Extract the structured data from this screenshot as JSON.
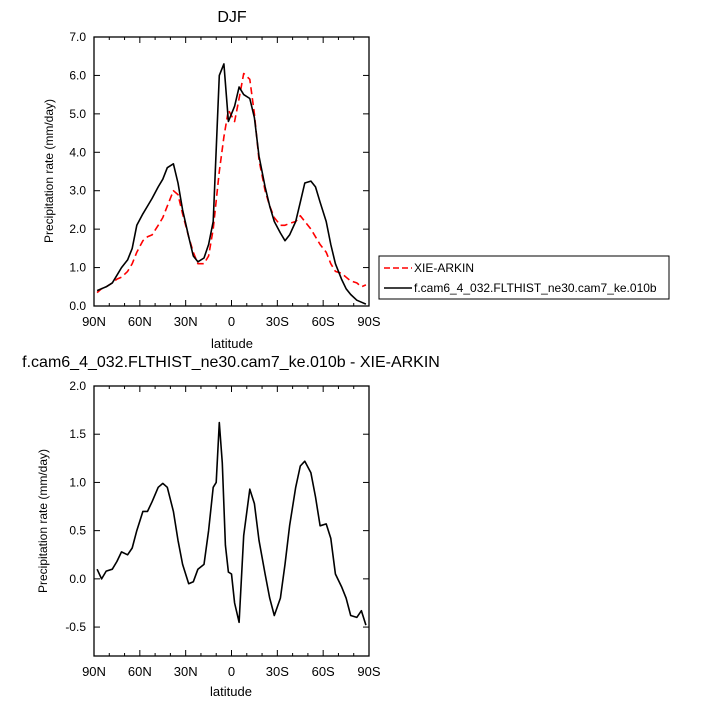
{
  "chart_data": [
    {
      "type": "line",
      "title": "DJF",
      "xlabel": "latitude",
      "ylabel": "Precipitation rate (mm/day)",
      "xlim": [
        90,
        -90
      ],
      "ylim": [
        0,
        7
      ],
      "x_ticks": [
        90,
        60,
        30,
        0,
        -30,
        -60,
        -90
      ],
      "x_tick_labels": [
        "90N",
        "60N",
        "30N",
        "0",
        "30S",
        "60S",
        "90S"
      ],
      "y_ticks": [
        0,
        1,
        2,
        3,
        4,
        5,
        6,
        7
      ],
      "y_tick_labels": [
        "0.0",
        "1.0",
        "2.0",
        "3.0",
        "4.0",
        "5.0",
        "6.0",
        "7.0"
      ],
      "legend_position": "outside-right",
      "series": [
        {
          "name": "XIE-ARKIN",
          "color": "#ff0000",
          "style": "dashed",
          "x": [
            88,
            85,
            82,
            78,
            75,
            72,
            68,
            65,
            62,
            58,
            55,
            52,
            48,
            45,
            42,
            38,
            35,
            32,
            28,
            25,
            22,
            18,
            15,
            12,
            8,
            5,
            2,
            -2,
            -5,
            -8,
            -12,
            -15,
            -18,
            -22,
            -25,
            -28,
            -32,
            -35,
            -38,
            -42,
            -45,
            -48,
            -52,
            -55,
            -58,
            -62,
            -65,
            -68,
            -72,
            -75,
            -78,
            -82,
            -85,
            -88
          ],
          "y": [
            0.35,
            0.45,
            0.5,
            0.6,
            0.7,
            0.75,
            0.9,
            1.1,
            1.4,
            1.7,
            1.8,
            1.85,
            2.1,
            2.3,
            2.6,
            3.0,
            2.9,
            2.4,
            1.8,
            1.4,
            1.1,
            1.1,
            1.3,
            2.0,
            3.5,
            4.4,
            5.1,
            4.8,
            5.4,
            6.05,
            5.9,
            5.0,
            3.8,
            3.0,
            2.6,
            2.3,
            2.1,
            2.1,
            2.15,
            2.2,
            2.35,
            2.2,
            2.0,
            1.8,
            1.6,
            1.4,
            1.1,
            0.9,
            0.85,
            0.75,
            0.65,
            0.6,
            0.5,
            0.55
          ]
        },
        {
          "name": "f.cam6_4_032.FLTHIST_ne30.cam7_ke.010b",
          "color": "#000000",
          "style": "solid",
          "x": [
            88,
            85,
            82,
            78,
            75,
            72,
            68,
            65,
            62,
            58,
            55,
            52,
            48,
            45,
            42,
            38,
            35,
            32,
            28,
            25,
            22,
            18,
            15,
            12,
            8,
            5,
            2,
            -2,
            -5,
            -8,
            -12,
            -15,
            -18,
            -22,
            -25,
            -28,
            -32,
            -35,
            -38,
            -42,
            -45,
            -48,
            -52,
            -55,
            -58,
            -62,
            -65,
            -68,
            -72,
            -75,
            -78,
            -82,
            -85,
            -88
          ],
          "y": [
            0.4,
            0.45,
            0.5,
            0.6,
            0.8,
            1.0,
            1.2,
            1.5,
            2.1,
            2.4,
            2.6,
            2.8,
            3.1,
            3.3,
            3.6,
            3.7,
            3.2,
            2.5,
            1.8,
            1.3,
            1.15,
            1.25,
            1.6,
            2.2,
            6.0,
            6.3,
            4.8,
            5.2,
            5.7,
            5.5,
            5.4,
            4.9,
            3.9,
            3.1,
            2.6,
            2.2,
            1.9,
            1.7,
            1.85,
            2.2,
            2.7,
            3.2,
            3.25,
            3.1,
            2.7,
            2.2,
            1.6,
            1.1,
            0.7,
            0.45,
            0.3,
            0.15,
            0.1,
            0.05
          ]
        }
      ]
    },
    {
      "type": "line",
      "title": "f.cam6_4_032.FLTHIST_ne30.cam7_ke.010b - XIE-ARKIN",
      "xlabel": "latitude",
      "ylabel": "Precipitation rate (mm/day)",
      "xlim": [
        90,
        -90
      ],
      "ylim": [
        -0.8,
        2.0
      ],
      "x_ticks": [
        90,
        60,
        30,
        0,
        -30,
        -60,
        -90
      ],
      "x_tick_labels": [
        "90N",
        "60N",
        "30N",
        "0",
        "30S",
        "60S",
        "90S"
      ],
      "y_ticks": [
        -0.5,
        0,
        0.5,
        1.0,
        1.5,
        2.0
      ],
      "y_tick_labels": [
        "-0.5",
        "0.0",
        "0.5",
        "1.0",
        "1.5",
        "2.0"
      ],
      "series": [
        {
          "color": "#000000",
          "style": "solid",
          "x": [
            88,
            85,
            82,
            78,
            75,
            72,
            68,
            65,
            62,
            58,
            55,
            52,
            48,
            45,
            42,
            38,
            35,
            32,
            28,
            25,
            22,
            18,
            15,
            12,
            10,
            8,
            6,
            4,
            2,
            0,
            -2,
            -5,
            -8,
            -12,
            -15,
            -18,
            -22,
            -25,
            -28,
            -32,
            -35,
            -38,
            -42,
            -45,
            -48,
            -52,
            -55,
            -58,
            -62,
            -65,
            -68,
            -72,
            -75,
            -78,
            -82,
            -85,
            -88
          ],
          "y": [
            0.1,
            0.0,
            0.08,
            0.1,
            0.18,
            0.28,
            0.25,
            0.32,
            0.5,
            0.7,
            0.7,
            0.8,
            0.95,
            0.99,
            0.95,
            0.7,
            0.4,
            0.15,
            -0.05,
            -0.03,
            0.1,
            0.15,
            0.5,
            0.95,
            1.0,
            1.62,
            1.2,
            0.35,
            0.07,
            0.05,
            -0.25,
            -0.45,
            0.45,
            0.93,
            0.78,
            0.4,
            0.05,
            -0.2,
            -0.38,
            -0.2,
            0.15,
            0.55,
            0.95,
            1.17,
            1.22,
            1.1,
            0.85,
            0.55,
            0.57,
            0.42,
            0.05,
            -0.08,
            -0.2,
            -0.38,
            -0.4,
            -0.33,
            -0.48
          ]
        }
      ]
    }
  ]
}
